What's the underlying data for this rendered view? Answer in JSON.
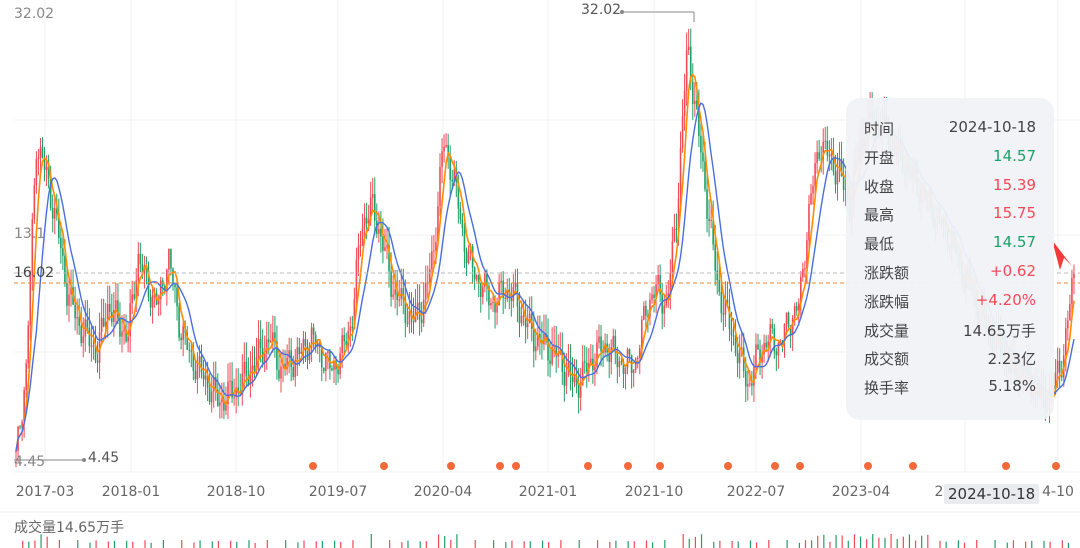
{
  "chart_data": {
    "type": "candlestick",
    "y_max_label": "32.02",
    "y_min_label": "4.45",
    "y_mid_label": "13.1",
    "current_price_label": "16.02",
    "max_marker": "32.02",
    "min_marker": "4.45",
    "x_ticks": [
      "2017-03",
      "2018-01",
      "2018-10",
      "2019-07",
      "2020-04",
      "2021-01",
      "2021-10",
      "2022-07",
      "2023-04",
      "2",
      "4-10"
    ],
    "ylim": [
      4.45,
      32.02
    ],
    "series_close": [
      4.5,
      10,
      24,
      22,
      19,
      15,
      13,
      12,
      11,
      14,
      13,
      12,
      17,
      15,
      14,
      17,
      13,
      11,
      10,
      9,
      8,
      8.5,
      9,
      10,
      11,
      12,
      10,
      10.5,
      11,
      12,
      11,
      10,
      11,
      13,
      19,
      20,
      18,
      15,
      14,
      13,
      14,
      17,
      24,
      22,
      18,
      16,
      15,
      14,
      15,
      14.5,
      13,
      12,
      11.5,
      11,
      10,
      9,
      10,
      11,
      11.5,
      10.8,
      10.2,
      10.6,
      14,
      15,
      14,
      20,
      30,
      25,
      20,
      15,
      13,
      11,
      9,
      11,
      12,
      11.5,
      13,
      14,
      20,
      24,
      23,
      22,
      20,
      24,
      25,
      25,
      24,
      23,
      22,
      21,
      20,
      19,
      18,
      16,
      15,
      13,
      12,
      11,
      10,
      9.5,
      9,
      8,
      9,
      11,
      16
    ],
    "volume_label": "成交量14.65万手",
    "markers": 17
  },
  "tooltip": {
    "rows": [
      {
        "k": "时间",
        "v": "2024-10-18",
        "cls": ""
      },
      {
        "k": "开盘",
        "v": "14.57",
        "cls": "down"
      },
      {
        "k": "收盘",
        "v": "15.39",
        "cls": "up"
      },
      {
        "k": "最高",
        "v": "15.75",
        "cls": "up"
      },
      {
        "k": "最低",
        "v": "14.57",
        "cls": "down"
      },
      {
        "k": "涨跌额",
        "v": "+0.62",
        "cls": "up"
      },
      {
        "k": "涨跌幅",
        "v": "+4.20%",
        "cls": "up"
      },
      {
        "k": "成交量",
        "v": "14.65万手",
        "cls": ""
      },
      {
        "k": "成交额",
        "v": "2.23亿",
        "cls": ""
      },
      {
        "k": "换手率",
        "v": "5.18%",
        "cls": ""
      }
    ]
  },
  "crosshair_date": "2024-10-18",
  "colors": {
    "up": "#f24957",
    "down": "#1ea067",
    "ma1": "#ff8c00",
    "ma2": "#4a6ee0",
    "marker": "#f26a3a"
  }
}
